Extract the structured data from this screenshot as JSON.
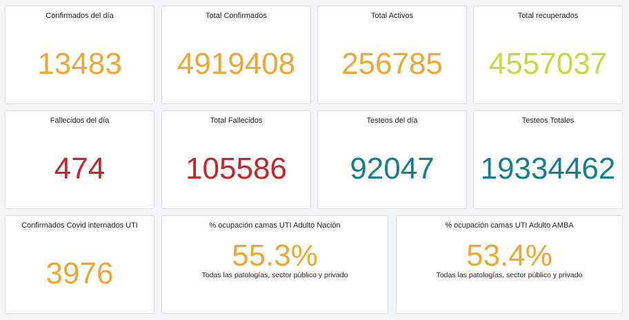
{
  "panels": [
    {
      "title": "Confirmados del día",
      "value": 13483,
      "color": "#eea735"
    },
    {
      "title": "Total Confirmados",
      "value": 4919408,
      "color": "#eea735"
    },
    {
      "title": "Total Activos",
      "value": 256785,
      "color": "#eea735"
    },
    {
      "title": "Total recuperados",
      "value": 4557037,
      "color": "#c9d944"
    },
    {
      "title": "Fallecidos del día",
      "value": 474,
      "color": "#c1272d"
    },
    {
      "title": "Total Fallecidos",
      "value": 105586,
      "color": "#c1272d"
    },
    {
      "title": "Testeos del día",
      "value": 92047,
      "color": "#177f86"
    },
    {
      "title": "Testeos Totales",
      "value": 19334462,
      "color": "#177f86"
    },
    {
      "title": "Confirmados Covid internados UTI",
      "value": 3976,
      "color": "#eea735"
    },
    {
      "title": "% ocupación camas UTI Adulto Nación",
      "value": "55.3%",
      "subtitle": "Todas las patologías, sector público y privado",
      "color": "#eea735"
    },
    {
      "title": "% ocupación camas UTI Adulto AMBA",
      "value": "53.4%",
      "subtitle": "Todas las patologías, sector público y privado",
      "color": "#eea735"
    }
  ]
}
